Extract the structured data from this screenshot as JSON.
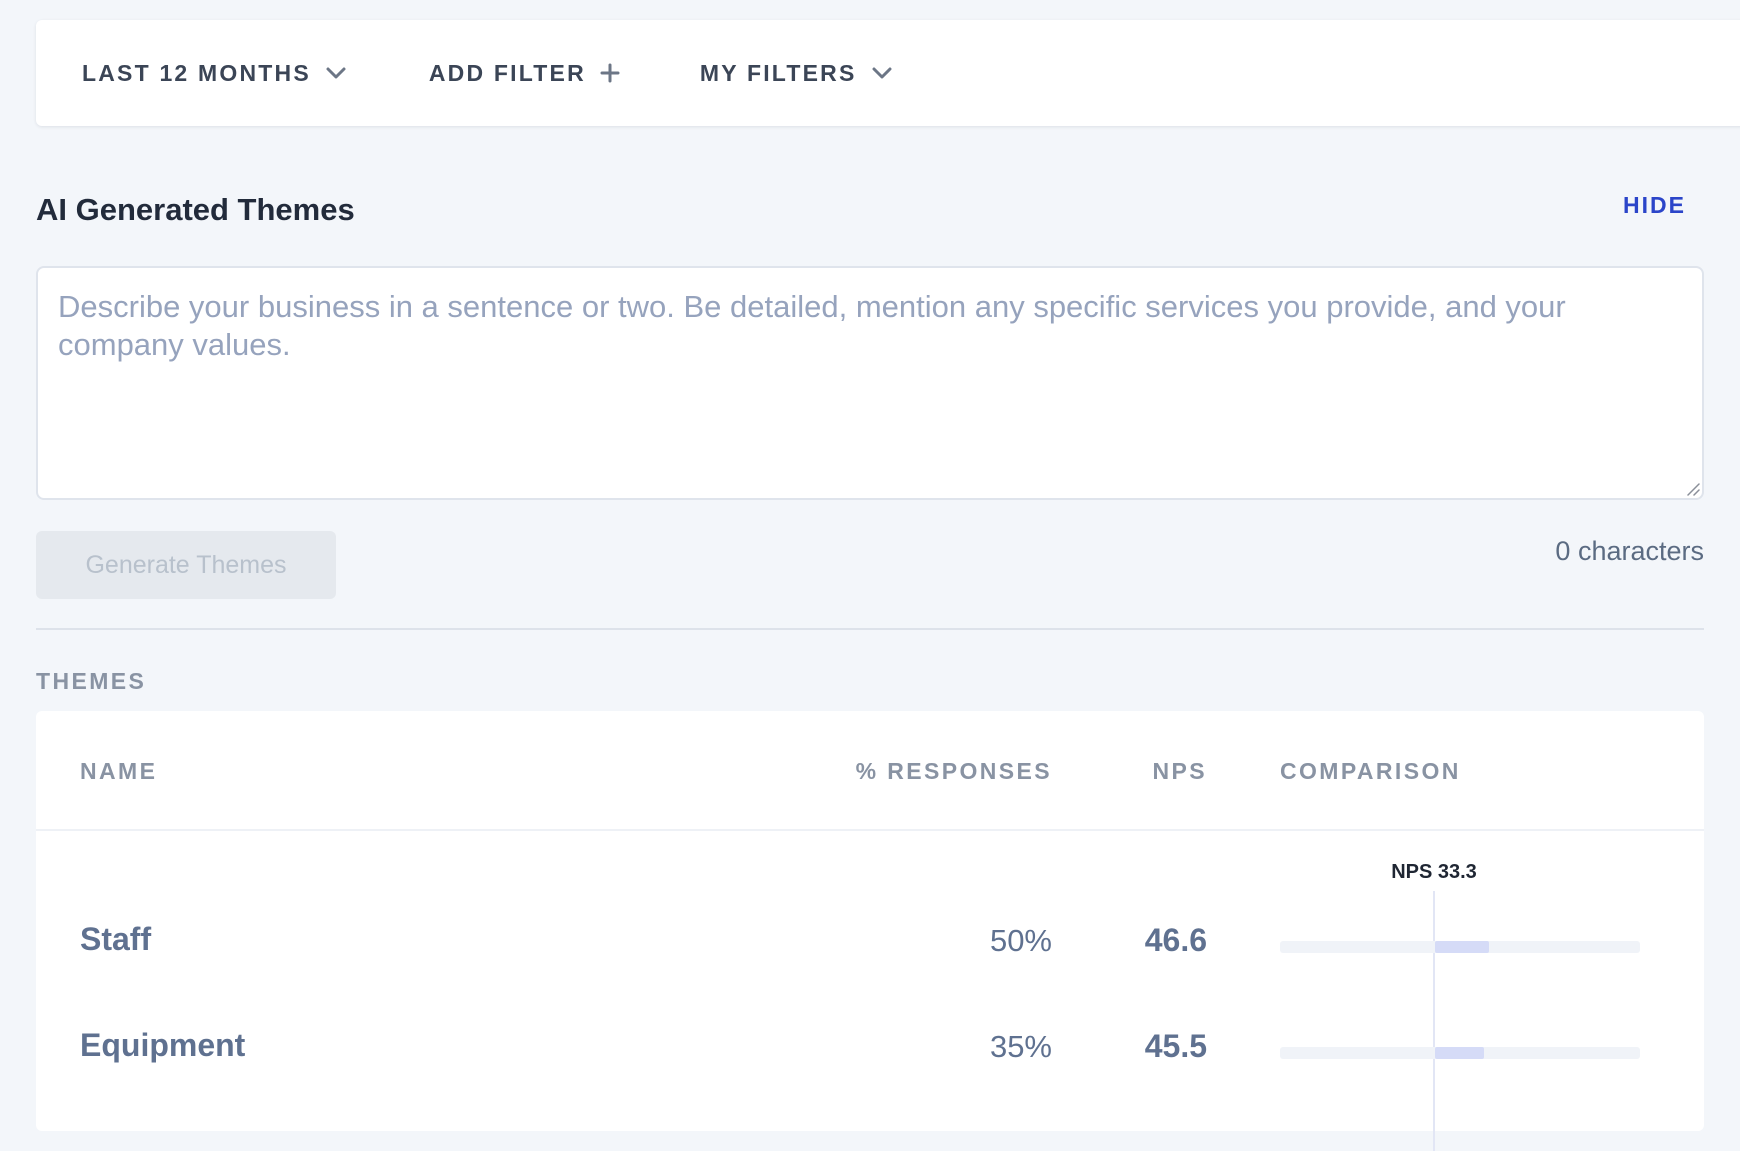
{
  "filters": {
    "time_range": "LAST 12 MONTHS",
    "add_filter": "ADD FILTER",
    "my_filters": "MY FILTERS"
  },
  "ai_section": {
    "title": "AI Generated Themes",
    "hide_label": "HIDE",
    "description_placeholder": "Describe your business in a sentence or two. Be detailed, mention any specific services you provide, and your company values.",
    "description_value": "",
    "generate_button": "Generate Themes",
    "char_count": "0 characters"
  },
  "themes": {
    "section_label": "THEMES",
    "columns": {
      "name": "NAME",
      "responses": "% RESPONSES",
      "nps": "NPS",
      "comparison": "COMPARISON"
    },
    "reference": {
      "label": "NPS 33.3",
      "value": 33.3
    },
    "rows": [
      {
        "name": "Staff",
        "responses": "50%",
        "nps": "46.6",
        "nps_value": 46.6
      },
      {
        "name": "Equipment",
        "responses": "35%",
        "nps": "45.5",
        "nps_value": 45.5
      }
    ]
  },
  "colors": {
    "accent": "#2b45c9",
    "bar_fill": "#d5dbf7",
    "reference_line": "#e2e6f5"
  }
}
